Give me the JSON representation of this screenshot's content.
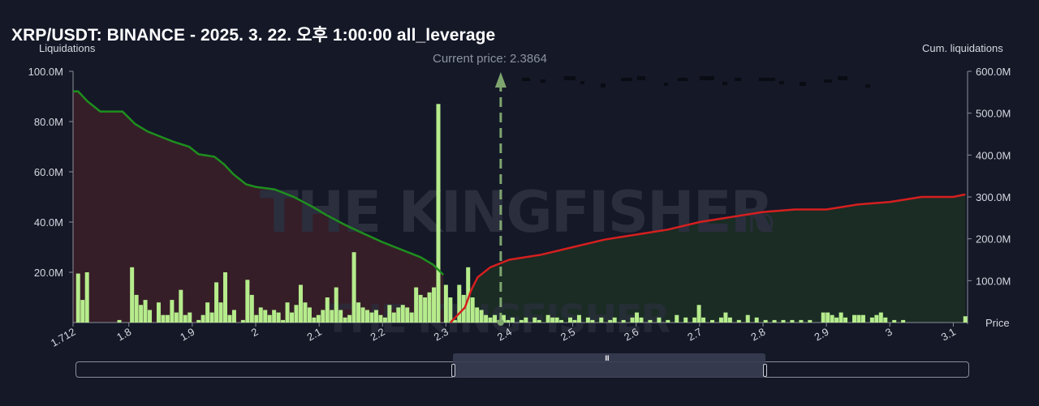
{
  "title": "XRP/USDT: BINANCE - 2025. 3. 22. 오후 1:00:00 all_leverage",
  "watermark": {
    "main": "THE KINGFISHER",
    "suffix": ".IO"
  },
  "navigator": {
    "grip": "III"
  },
  "colors": {
    "background": "#141827",
    "bars": "#b6ec8c",
    "cum_left_line": "#1e8f1e",
    "cum_right_line": "#d61f1f",
    "left_area": "#3a1f29",
    "right_area": "#1b2f25",
    "current_price": "#7fa56f"
  },
  "chart_data": {
    "type": "bar",
    "title": "XRP/USDT: BINANCE - 2025. 3. 22. 오후 1:00:00 all_leverage",
    "ylabel_left": "Liquidations",
    "ylabel_right": "Cum. liquidations",
    "xlabel": "Price",
    "xlim": [
      1.712,
      3.12
    ],
    "ylim_left": [
      0,
      100
    ],
    "ylim_right": [
      0,
      600
    ],
    "unit": "M",
    "x_ticks": [
      "1.712",
      "1.8",
      "1.9",
      "2",
      "2.1",
      "2.2",
      "2.3",
      "2.4",
      "2.5",
      "2.6",
      "2.7",
      "2.8",
      "2.9",
      "3",
      "3.1"
    ],
    "y_left_ticks": [
      "20.0M",
      "40.0M",
      "60.0M",
      "80.0M",
      "100.0M"
    ],
    "y_right_ticks": [
      "100.0M",
      "200.0M",
      "300.0M",
      "400.0M",
      "500.0M",
      "600.0M"
    ],
    "current_price_label": "Current price: 2.3864",
    "current_price": 2.3864,
    "bars": [
      [
        1.72,
        19.5
      ],
      [
        1.727,
        9
      ],
      [
        1.734,
        20
      ],
      [
        1.785,
        1
      ],
      [
        1.805,
        22
      ],
      [
        1.812,
        11
      ],
      [
        1.819,
        7
      ],
      [
        1.826,
        9
      ],
      [
        1.833,
        5
      ],
      [
        1.847,
        8
      ],
      [
        1.854,
        3
      ],
      [
        1.861,
        3
      ],
      [
        1.868,
        9
      ],
      [
        1.875,
        4
      ],
      [
        1.882,
        13
      ],
      [
        1.889,
        3
      ],
      [
        1.896,
        4
      ],
      [
        1.91,
        1
      ],
      [
        1.917,
        3
      ],
      [
        1.924,
        8
      ],
      [
        1.931,
        4
      ],
      [
        1.938,
        16
      ],
      [
        1.945,
        8
      ],
      [
        1.952,
        20
      ],
      [
        1.959,
        3
      ],
      [
        1.966,
        5
      ],
      [
        1.98,
        1
      ],
      [
        1.987,
        17
      ],
      [
        1.994,
        11
      ],
      [
        2.001,
        3
      ],
      [
        2.008,
        6
      ],
      [
        2.015,
        5
      ],
      [
        2.022,
        3
      ],
      [
        2.029,
        5
      ],
      [
        2.036,
        4
      ],
      [
        2.043,
        1
      ],
      [
        2.05,
        8
      ],
      [
        2.057,
        4
      ],
      [
        2.064,
        7
      ],
      [
        2.071,
        15
      ],
      [
        2.078,
        8
      ],
      [
        2.085,
        6
      ],
      [
        2.092,
        2
      ],
      [
        2.099,
        3
      ],
      [
        2.106,
        5
      ],
      [
        2.113,
        10
      ],
      [
        2.12,
        5
      ],
      [
        2.127,
        14
      ],
      [
        2.134,
        5
      ],
      [
        2.141,
        2
      ],
      [
        2.148,
        3
      ],
      [
        2.155,
        28
      ],
      [
        2.162,
        8
      ],
      [
        2.169,
        6
      ],
      [
        2.176,
        5
      ],
      [
        2.183,
        4
      ],
      [
        2.19,
        5
      ],
      [
        2.197,
        3
      ],
      [
        2.204,
        2
      ],
      [
        2.211,
        7
      ],
      [
        2.218,
        4
      ],
      [
        2.225,
        6
      ],
      [
        2.232,
        7
      ],
      [
        2.239,
        6
      ],
      [
        2.246,
        4
      ],
      [
        2.253,
        14
      ],
      [
        2.26,
        11
      ],
      [
        2.267,
        10
      ],
      [
        2.274,
        12
      ],
      [
        2.281,
        14
      ],
      [
        2.288,
        87
      ],
      [
        2.3,
        15
      ],
      [
        2.307,
        10
      ],
      [
        2.314,
        1
      ],
      [
        2.321,
        15
      ],
      [
        2.328,
        11
      ],
      [
        2.335,
        22
      ],
      [
        2.342,
        10
      ],
      [
        2.349,
        6
      ],
      [
        2.356,
        5
      ],
      [
        2.363,
        3
      ],
      [
        2.37,
        2
      ],
      [
        2.377,
        3
      ],
      [
        2.384,
        1
      ],
      [
        2.391,
        3
      ],
      [
        2.398,
        1
      ],
      [
        2.405,
        2
      ],
      [
        2.419,
        1
      ],
      [
        2.426,
        2
      ],
      [
        2.44,
        2
      ],
      [
        2.447,
        1
      ],
      [
        2.461,
        3
      ],
      [
        2.468,
        2
      ],
      [
        2.475,
        2
      ],
      [
        2.482,
        1
      ],
      [
        2.496,
        2
      ],
      [
        2.503,
        1
      ],
      [
        2.51,
        3
      ],
      [
        2.524,
        2
      ],
      [
        2.531,
        1
      ],
      [
        2.545,
        2
      ],
      [
        2.559,
        1
      ],
      [
        2.566,
        2
      ],
      [
        2.58,
        1
      ],
      [
        2.594,
        2
      ],
      [
        2.601,
        4
      ],
      [
        2.608,
        2
      ],
      [
        2.622,
        1
      ],
      [
        2.636,
        2
      ],
      [
        2.65,
        1
      ],
      [
        2.664,
        3
      ],
      [
        2.678,
        2
      ],
      [
        2.692,
        2
      ],
      [
        2.699,
        7
      ],
      [
        2.706,
        2
      ],
      [
        2.72,
        1
      ],
      [
        2.734,
        2
      ],
      [
        2.741,
        4
      ],
      [
        2.748,
        2
      ],
      [
        2.762,
        1
      ],
      [
        2.776,
        3
      ],
      [
        2.79,
        2
      ],
      [
        2.804,
        1
      ],
      [
        2.818,
        1
      ],
      [
        2.832,
        1
      ],
      [
        2.846,
        1
      ],
      [
        2.86,
        1
      ],
      [
        2.874,
        1
      ],
      [
        2.895,
        4
      ],
      [
        2.902,
        4
      ],
      [
        2.909,
        3
      ],
      [
        2.916,
        2
      ],
      [
        2.923,
        4
      ],
      [
        2.93,
        2
      ],
      [
        2.944,
        3
      ],
      [
        2.951,
        3
      ],
      [
        2.958,
        3
      ],
      [
        2.972,
        2
      ],
      [
        2.979,
        3
      ],
      [
        2.986,
        4
      ],
      [
        2.993,
        2
      ],
      [
        3.007,
        1
      ],
      [
        3.021,
        1
      ],
      [
        3.119,
        2.5
      ]
    ],
    "cum_left": [
      [
        1.712,
        92
      ],
      [
        1.72,
        92
      ],
      [
        1.735,
        88
      ],
      [
        1.755,
        84
      ],
      [
        1.79,
        84
      ],
      [
        1.81,
        79
      ],
      [
        1.83,
        76
      ],
      [
        1.85,
        74
      ],
      [
        1.87,
        72
      ],
      [
        1.895,
        70
      ],
      [
        1.91,
        67
      ],
      [
        1.935,
        66
      ],
      [
        1.95,
        63
      ],
      [
        1.965,
        59
      ],
      [
        1.985,
        55
      ],
      [
        2.0,
        54
      ],
      [
        2.03,
        53
      ],
      [
        2.06,
        50
      ],
      [
        2.09,
        46
      ],
      [
        2.11,
        43
      ],
      [
        2.14,
        39
      ],
      [
        2.165,
        36
      ],
      [
        2.2,
        32
      ],
      [
        2.23,
        29
      ],
      [
        2.26,
        26
      ],
      [
        2.28,
        23
      ],
      [
        2.296,
        19
      ]
    ],
    "cum_right": [
      [
        2.307,
        0
      ],
      [
        2.33,
        6
      ],
      [
        2.34,
        13
      ],
      [
        2.35,
        18
      ],
      [
        2.37,
        22
      ],
      [
        2.4,
        25
      ],
      [
        2.45,
        27
      ],
      [
        2.5,
        30
      ],
      [
        2.55,
        33
      ],
      [
        2.6,
        35
      ],
      [
        2.65,
        37
      ],
      [
        2.7,
        40
      ],
      [
        2.75,
        42
      ],
      [
        2.8,
        44
      ],
      [
        2.85,
        45
      ],
      [
        2.9,
        45
      ],
      [
        2.95,
        47
      ],
      [
        3.0,
        48
      ],
      [
        3.05,
        50
      ],
      [
        3.1,
        50
      ],
      [
        3.119,
        51
      ]
    ]
  }
}
